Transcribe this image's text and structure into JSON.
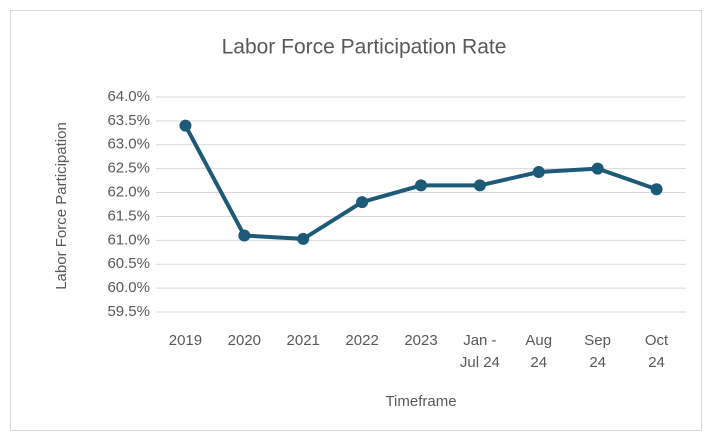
{
  "chart_data": {
    "type": "line",
    "title": "Labor Force Participation Rate",
    "x_label": "Timeframe",
    "y_label": "Labor Force Participation",
    "categories": [
      "2019",
      "2020",
      "2021",
      "2022",
      "2023",
      "Jan - Jul 24",
      "Aug 24",
      "Sep 24",
      "Oct 24"
    ],
    "values": [
      63.4,
      61.1,
      61.03,
      61.8,
      62.15,
      62.15,
      62.43,
      62.5,
      62.07
    ],
    "color": "#1d5a78",
    "ylim": [
      59.5,
      64.0
    ],
    "yticks": [
      {
        "value": 59.5,
        "label": "59.5%"
      },
      {
        "value": 60.0,
        "label": "60.0%"
      },
      {
        "value": 60.5,
        "label": "60.5%"
      },
      {
        "value": 61.0,
        "label": "61.0%"
      },
      {
        "value": 61.5,
        "label": "61.5%"
      },
      {
        "value": 62.0,
        "label": "62.0%"
      },
      {
        "value": 62.5,
        "label": "62.5%"
      },
      {
        "value": 63.0,
        "label": "63.0%"
      },
      {
        "value": 63.5,
        "label": "63.5%"
      },
      {
        "value": 64.0,
        "label": "64.0%"
      }
    ],
    "grid": true
  }
}
